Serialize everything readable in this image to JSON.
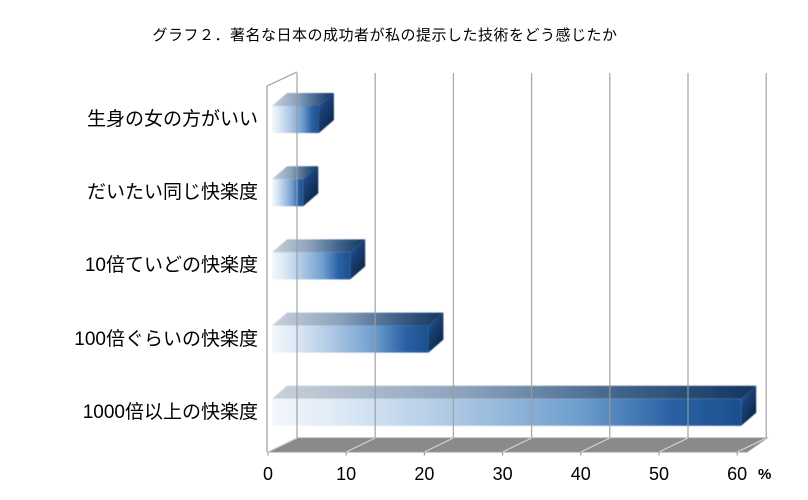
{
  "title": "グラフ２．著名な日本の成功者が私の提示した技術をどう感じたか",
  "chart_data": {
    "type": "bar",
    "orientation": "horizontal",
    "style_3d": true,
    "title": "グラフ２．著名な日本の成功者が私の提示した技術をどう感じたか",
    "categories": [
      "生身の女の方がいい",
      "だいたい同じ快楽度",
      "10倍ていどの快楽度",
      "100倍ぐらいの快楽度",
      "1000倍以上の快楽度"
    ],
    "values": [
      6,
      4,
      10,
      20,
      60
    ],
    "value_unit": "%",
    "x_ticks": [
      "0",
      "10",
      "20",
      "30",
      "40",
      "50",
      "60"
    ],
    "xlim": [
      0,
      60
    ],
    "axis_label": "%",
    "grid": true,
    "legend": "none",
    "colors": {
      "bar_gradient_light": "#f4f8fc",
      "bar_gradient_mid": "#aac6e3",
      "bar_gradient_dark": "#1c4f8e",
      "bar_cap": "#0a2342",
      "bar_top_dark": "#11355f",
      "floor": "#8a8a8a",
      "floor_line": "#d4d4d4",
      "gridline": "#9c9c9c",
      "wall_edge": "#9a9a9a",
      "text": "#000000",
      "background": "#ffffff"
    }
  }
}
